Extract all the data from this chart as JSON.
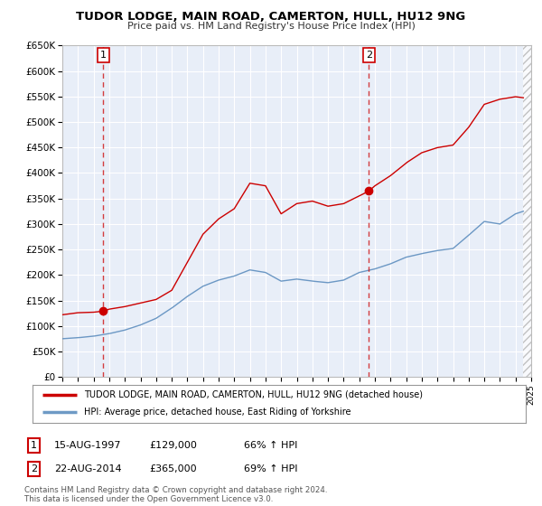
{
  "title": "TUDOR LODGE, MAIN ROAD, CAMERTON, HULL, HU12 9NG",
  "subtitle": "Price paid vs. HM Land Registry's House Price Index (HPI)",
  "legend_line1": "TUDOR LODGE, MAIN ROAD, CAMERTON, HULL, HU12 9NG (detached house)",
  "legend_line2": "HPI: Average price, detached house, East Riding of Yorkshire",
  "sale1_date": "15-AUG-1997",
  "sale1_price": 129000,
  "sale1_pct": "66% ↑ HPI",
  "sale1_x": 1997.62,
  "sale2_date": "22-AUG-2014",
  "sale2_price": 365000,
  "sale2_pct": "69% ↑ HPI",
  "sale2_x": 2014.62,
  "footer": "Contains HM Land Registry data © Crown copyright and database right 2024.\nThis data is licensed under the Open Government Licence v3.0.",
  "ylim": [
    0,
    650000
  ],
  "xlim": [
    1995,
    2025
  ],
  "background_color": "#e8eef8",
  "grid_color": "#ffffff",
  "red_line_color": "#cc0000",
  "blue_line_color": "#5588bb",
  "hatch_start": 2024.5
}
